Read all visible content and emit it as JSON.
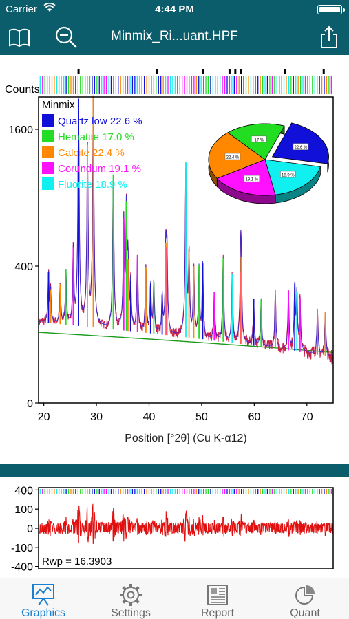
{
  "status": {
    "carrier": "Carrier",
    "time": "4:44 PM"
  },
  "nav": {
    "title": "Minmix_Ri...uant.HPF",
    "left_icons": [
      "book-icon",
      "zoom-out-icon"
    ],
    "right_icon": "share-icon"
  },
  "colors": {
    "nav_bg": "#0b5d6b",
    "tab_active": "#1a7fd0",
    "residual": "#e01010"
  },
  "chart_data": [
    {
      "type": "line",
      "title": "",
      "legend_title": "Minmix",
      "xlabel": "Position [°2θ] (Cu K-α12)",
      "ylabel": "Counts",
      "y_scale": "sqrt",
      "xlim": [
        19,
        75
      ],
      "ylim": [
        0,
        2000
      ],
      "xticks": [
        20,
        30,
        40,
        50,
        60,
        70
      ],
      "yticks": [
        0,
        400,
        1600
      ],
      "series": [
        {
          "name": "Quartz low 22.6 %",
          "color": "#1010d8",
          "value": 22.6
        },
        {
          "name": "Hematite 17.0 %",
          "color": "#22dd22",
          "value": 17.0
        },
        {
          "name": "Calcite 22.4 %",
          "color": "#ff8800",
          "value": 22.4
        },
        {
          "name": "Corundum 19.1 %",
          "color": "#ff10ff",
          "value": 19.1
        },
        {
          "name": "Fluorite 18.9 %",
          "color": "#10f0f0",
          "value": 18.9
        }
      ],
      "peaks": [
        {
          "x": 20.9,
          "y": 230,
          "c": 0
        },
        {
          "x": 21.3,
          "y": 140,
          "c": 2
        },
        {
          "x": 23.1,
          "y": 170,
          "c": 2
        },
        {
          "x": 24.2,
          "y": 250,
          "c": 1
        },
        {
          "x": 25.6,
          "y": 390,
          "c": 3
        },
        {
          "x": 26.6,
          "y": 1850,
          "c": 0
        },
        {
          "x": 28.3,
          "y": 1300,
          "c": 4
        },
        {
          "x": 29.4,
          "y": 1900,
          "c": 2
        },
        {
          "x": 33.2,
          "y": 1000,
          "c": 1
        },
        {
          "x": 35.2,
          "y": 620,
          "c": 3
        },
        {
          "x": 35.7,
          "y": 760,
          "c": 1
        },
        {
          "x": 36.0,
          "y": 330,
          "c": 2
        },
        {
          "x": 36.5,
          "y": 210,
          "c": 0
        },
        {
          "x": 37.8,
          "y": 360,
          "c": 3
        },
        {
          "x": 39.4,
          "y": 290,
          "c": 2
        },
        {
          "x": 40.3,
          "y": 200,
          "c": 0
        },
        {
          "x": 40.9,
          "y": 210,
          "c": 1
        },
        {
          "x": 42.5,
          "y": 150,
          "c": 0
        },
        {
          "x": 43.2,
          "y": 450,
          "c": 2
        },
        {
          "x": 43.4,
          "y": 420,
          "c": 3
        },
        {
          "x": 47.0,
          "y": 1150,
          "c": 4
        },
        {
          "x": 47.6,
          "y": 400,
          "c": 2
        },
        {
          "x": 48.5,
          "y": 310,
          "c": 2
        },
        {
          "x": 49.5,
          "y": 320,
          "c": 1
        },
        {
          "x": 50.2,
          "y": 330,
          "c": 0
        },
        {
          "x": 52.4,
          "y": 180,
          "c": 3
        },
        {
          "x": 54.1,
          "y": 370,
          "c": 1
        },
        {
          "x": 55.8,
          "y": 280,
          "c": 4
        },
        {
          "x": 57.4,
          "y": 290,
          "c": 3
        },
        {
          "x": 57.5,
          "y": 380,
          "c": 2
        },
        {
          "x": 59.9,
          "y": 160,
          "c": 0
        },
        {
          "x": 61.3,
          "y": 160,
          "c": 1
        },
        {
          "x": 64.0,
          "y": 210,
          "c": 1
        },
        {
          "x": 66.5,
          "y": 210,
          "c": 3
        },
        {
          "x": 67.7,
          "y": 250,
          "c": 0
        },
        {
          "x": 68.1,
          "y": 210,
          "c": 4
        },
        {
          "x": 68.7,
          "y": 180,
          "c": 3
        },
        {
          "x": 72.0,
          "y": 140,
          "c": 1
        },
        {
          "x": 73.5,
          "y": 130,
          "c": 2
        }
      ],
      "pie": [
        {
          "label": "22.6 %",
          "value": 22.6,
          "color": "#1010d8",
          "exploded": true
        },
        {
          "label": "18.9 %",
          "value": 18.9,
          "color": "#10f0f0"
        },
        {
          "label": "19.1 %",
          "value": 19.1,
          "color": "#ff10ff"
        },
        {
          "label": "22.4 %",
          "value": 22.4,
          "color": "#ff8800"
        },
        {
          "label": "17 %",
          "value": 17.0,
          "color": "#22dd22"
        }
      ]
    },
    {
      "type": "line",
      "title": "",
      "ylim": [
        -450,
        450
      ],
      "yticks": [
        400,
        100,
        0,
        -100,
        -400
      ],
      "stat_label": "Rwp = 16.3903"
    }
  ],
  "tabs": [
    {
      "label": "Graphics",
      "icon": "graphics-icon",
      "active": true
    },
    {
      "label": "Settings",
      "icon": "gear-icon",
      "active": false
    },
    {
      "label": "Report",
      "icon": "report-icon",
      "active": false
    },
    {
      "label": "Quant",
      "icon": "pie-chart-icon",
      "active": false
    }
  ]
}
